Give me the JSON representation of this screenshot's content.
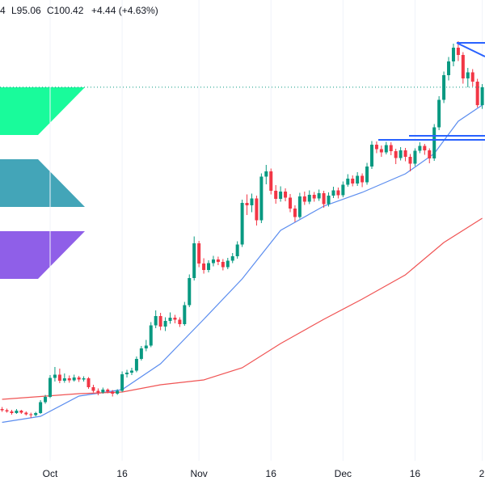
{
  "header": {
    "high_fragment": "4",
    "low": "L95.06",
    "close": "C100.42",
    "change": "+4.44 (+4.63%)"
  },
  "chart_data": {
    "type": "candlestick",
    "categories": [
      null,
      null,
      null,
      null,
      null,
      null,
      null,
      null,
      null,
      null,
      "Oct",
      null,
      null,
      null,
      null,
      null,
      null,
      null,
      null,
      null,
      null,
      null,
      null,
      null,
      null,
      "16",
      null,
      null,
      null,
      null,
      null,
      null,
      null,
      null,
      null,
      null,
      null,
      null,
      null,
      null,
      null,
      "Nov",
      null,
      null,
      null,
      null,
      null,
      null,
      null,
      null,
      null,
      null,
      null,
      null,
      null,
      null,
      "16",
      null,
      null,
      null,
      null,
      null,
      null,
      null,
      null,
      null,
      null,
      null,
      null,
      null,
      null,
      "Dec",
      null,
      null,
      null,
      null,
      null,
      null,
      null,
      null,
      null,
      null,
      null,
      null,
      null,
      null,
      "16",
      null,
      null,
      null,
      null,
      null,
      null,
      null,
      null,
      null,
      null,
      null,
      null,
      null,
      "2"
    ],
    "open": [
      20.8,
      20.5,
      20.2,
      19.8,
      20.4,
      19.9,
      19.5,
      19.3,
      19.8,
      22.5,
      23.8,
      28.5,
      29.3,
      27.8,
      28.4,
      27.9,
      28.6,
      28.1,
      28.4,
      26.2,
      25.3,
      24.9,
      25.6,
      25.1,
      24.6,
      25.3,
      29.4,
      29.8,
      30.3,
      33.2,
      35.8,
      36.5,
      41.5,
      43.8,
      41.2,
      42.6,
      43.4,
      42.9,
      41.8,
      46.5,
      53.2,
      61.8,
      56.8,
      55.2,
      56.9,
      57.8,
      57.2,
      55.9,
      57.5,
      58.6,
      61.5,
      71.8,
      71.2,
      72.9,
      67.5,
      78.3,
      79.6,
      74.8,
      72.8,
      74.6,
      73.1,
      70.4,
      68.3,
      73.4,
      72.1,
      73.8,
      72.9,
      74.2,
      71.5,
      73.6,
      74.9,
      73.7,
      76.3,
      77.8,
      76.6,
      78.5,
      76.9,
      80.8,
      86.2,
      85.1,
      84.3,
      86.1,
      84.6,
      82.9,
      84.8,
      83.2,
      81.5,
      84.7,
      85.9,
      84.8,
      82.8,
      90.5,
      97.3,
      103.4,
      106.8,
      110.2,
      108.4,
      102.6,
      104.1,
      101.8,
      95.98
    ],
    "high": [
      21.3,
      20.9,
      20.6,
      20.8,
      20.6,
      20.2,
      19.9,
      20.1,
      23.0,
      24.3,
      29.2,
      31.2,
      30.8,
      29.6,
      29.1,
      29.3,
      29.0,
      28.9,
      28.7,
      26.8,
      25.9,
      26.1,
      25.9,
      25.5,
      25.7,
      30.1,
      30.5,
      31.0,
      33.8,
      36.4,
      37.9,
      42.3,
      45.2,
      44.6,
      43.5,
      44.7,
      44.1,
      43.5,
      47.3,
      54.1,
      63.5,
      62.4,
      58.1,
      57.6,
      58.7,
      58.5,
      57.9,
      58.2,
      59.4,
      62.3,
      72.6,
      73.9,
      74.1,
      73.6,
      79.1,
      81.2,
      80.3,
      76.2,
      75.9,
      75.4,
      74.0,
      71.2,
      74.3,
      74.6,
      74.9,
      74.5,
      75.1,
      74.8,
      74.4,
      75.8,
      75.6,
      77.1,
      78.9,
      78.6,
      79.4,
      79.1,
      81.7,
      87.1,
      87.0,
      86.0,
      86.9,
      86.8,
      85.2,
      85.6,
      85.4,
      83.9,
      85.3,
      86.8,
      86.4,
      85.3,
      91.3,
      98.2,
      104.3,
      107.9,
      111.2,
      111.8,
      109.1,
      105.2,
      104.9,
      102.5,
      101.2
    ],
    "low": [
      20.1,
      19.9,
      19.4,
      19.6,
      19.6,
      19.2,
      18.6,
      19.0,
      19.6,
      22.1,
      23.5,
      27.6,
      27.2,
      27.3,
      27.3,
      27.6,
      27.5,
      27.6,
      25.8,
      24.9,
      24.2,
      24.6,
      24.7,
      23.9,
      24.3,
      25.0,
      28.6,
      29.2,
      29.9,
      32.8,
      35.1,
      36.1,
      40.8,
      40.3,
      40.1,
      41.9,
      42.0,
      41.1,
      41.4,
      46.0,
      52.6,
      55.9,
      54.3,
      54.6,
      56.1,
      56.4,
      55.1,
      55.4,
      56.9,
      58.0,
      60.9,
      68.8,
      69.5,
      66.2,
      66.8,
      76.4,
      73.9,
      71.6,
      72.1,
      72.2,
      69.5,
      67.1,
      67.9,
      71.3,
      71.5,
      72.1,
      72.3,
      70.6,
      70.9,
      73.0,
      72.9,
      73.2,
      75.8,
      75.9,
      76.0,
      75.7,
      76.3,
      80.2,
      84.1,
      83.2,
      83.8,
      83.6,
      81.4,
      82.3,
      82.1,
      79.6,
      80.9,
      84.1,
      83.7,
      81.6,
      82.2,
      89.8,
      96.5,
      102.1,
      105.6,
      106.9,
      101.3,
      100.4,
      100.6,
      95.4,
      95.06
    ],
    "close": [
      20.5,
      20.2,
      19.8,
      20.4,
      19.9,
      19.5,
      19.3,
      19.8,
      22.5,
      23.8,
      28.5,
      29.3,
      27.8,
      28.4,
      27.9,
      28.6,
      28.1,
      28.4,
      26.2,
      25.3,
      24.9,
      25.6,
      25.1,
      24.6,
      25.3,
      29.4,
      29.8,
      30.3,
      33.2,
      35.8,
      36.5,
      41.5,
      43.8,
      41.2,
      42.6,
      43.4,
      42.9,
      41.8,
      46.5,
      53.2,
      61.8,
      56.8,
      55.2,
      56.9,
      57.8,
      57.2,
      55.9,
      57.5,
      58.6,
      61.5,
      71.8,
      71.2,
      72.9,
      67.5,
      78.3,
      79.6,
      74.8,
      72.8,
      74.6,
      73.1,
      70.4,
      68.3,
      73.4,
      72.1,
      73.8,
      72.9,
      74.2,
      71.5,
      73.6,
      74.9,
      73.7,
      76.3,
      77.8,
      76.6,
      78.5,
      76.9,
      80.8,
      86.2,
      85.1,
      84.3,
      86.1,
      84.6,
      82.9,
      84.8,
      83.2,
      81.5,
      84.7,
      85.9,
      84.8,
      82.8,
      90.5,
      97.3,
      103.4,
      106.8,
      110.2,
      108.4,
      102.6,
      104.1,
      101.8,
      95.98,
      100.42
    ],
    "up_color": "#089981",
    "down_color": "#f23645",
    "lines": [
      {
        "color": "#5b8def",
        "x": [
          0,
          8,
          16,
          25,
          33,
          42,
          50,
          58,
          67,
          75,
          84,
          90,
          95,
          100
        ],
        "values": [
          17.5,
          19,
          24,
          25.6,
          32,
          43,
          53,
          65,
          71,
          74.4,
          79,
          84,
          92,
          96
        ]
      },
      {
        "color": "#f05454",
        "x": [
          0,
          16,
          25,
          33,
          42,
          50,
          58,
          67,
          75,
          84,
          92,
          100
        ],
        "values": [
          23.2,
          24.6,
          25,
          26.8,
          28,
          31,
          37,
          43,
          48,
          54,
          62,
          68
        ]
      }
    ],
    "ylim": [
      8,
      122
    ],
    "grid": true,
    "last_price_line": true
  }
}
